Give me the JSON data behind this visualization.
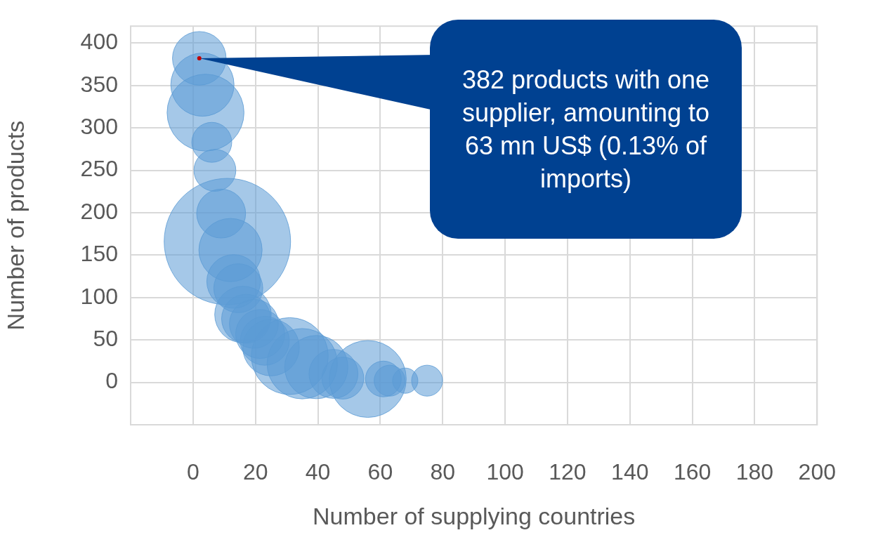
{
  "chart_data": {
    "type": "bubble",
    "xlabel": "Number of supplying countries",
    "ylabel": "Number of products",
    "x": [
      2,
      3,
      4,
      6,
      7,
      9,
      11,
      12,
      13,
      14.5,
      16,
      17,
      19.5,
      21.5,
      23,
      25,
      31,
      35,
      39.5,
      45,
      48,
      56,
      61,
      63,
      68,
      75
    ],
    "values": [
      382,
      351,
      318,
      283,
      250,
      199,
      166,
      156,
      119,
      111,
      80,
      75,
      69,
      57,
      49,
      41,
      31,
      22,
      18,
      10,
      5,
      4,
      4,
      2,
      2,
      2
    ],
    "sizes": [
      0.18,
      0.25,
      0.37,
      0.1,
      0.11,
      0.15,
      1,
      0.25,
      0.18,
      0.15,
      0.2,
      0.15,
      0.15,
      0.15,
      0.15,
      0.2,
      0.37,
      0.31,
      0.25,
      0.15,
      0.11,
      0.37,
      0.08,
      0.06,
      0.04,
      0.06
    ],
    "color": "#5b9bd5",
    "xlim": [
      -20,
      200
    ],
    "xticks": [
      0,
      20,
      40,
      60,
      80,
      100,
      120,
      140,
      160,
      180,
      200
    ],
    "ylim": [
      -50,
      420
    ],
    "yticks": [
      0,
      50,
      100,
      150,
      200,
      250,
      300,
      350,
      400
    ],
    "grid": true,
    "legend": false,
    "annotations": [
      {
        "text": "382 products with one supplier, amounting to 63 mn US$ (0.13% of imports)",
        "x": 2,
        "y": 382
      }
    ]
  }
}
